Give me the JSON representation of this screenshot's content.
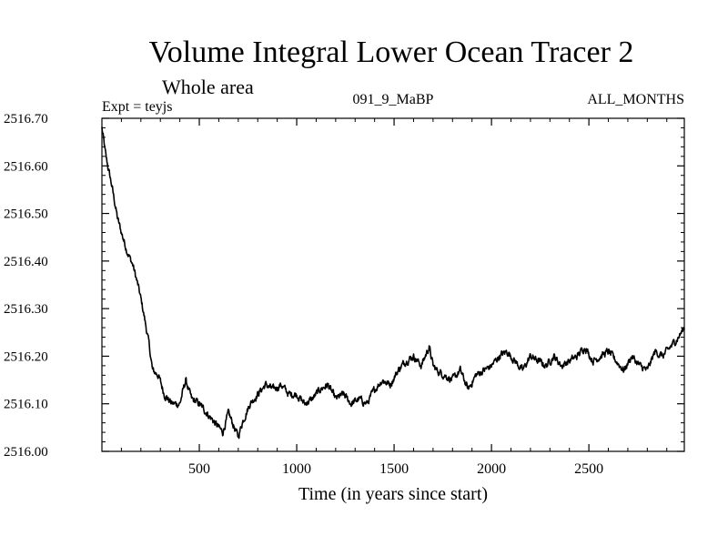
{
  "chart_data": {
    "type": "line",
    "title": "Volume Integral Lower Ocean Tracer 2",
    "subtitle": "Whole area",
    "expt_label": "Expt = teyjs",
    "run_label": "091_9_MaBP",
    "months_label": "ALL_MONTHS",
    "xlabel": "Time (in years since start)",
    "ylabel": "",
    "xlim": [
      0,
      2990
    ],
    "ylim": [
      2516.0,
      2516.7
    ],
    "x_ticks": [
      500,
      1000,
      1500,
      2000,
      2500
    ],
    "x_tick_labels": [
      "500",
      "1000",
      "1500",
      "2000",
      "2500"
    ],
    "y_ticks": [
      2516.0,
      2516.1,
      2516.2,
      2516.3,
      2516.4,
      2516.5,
      2516.6,
      2516.7
    ],
    "y_tick_labels": [
      "2516.00",
      "2516.10",
      "2516.20",
      "2516.30",
      "2516.40",
      "2516.50",
      "2516.60",
      "2516.70"
    ],
    "grid": false,
    "series": [
      {
        "name": "Volume integral",
        "x": [
          0,
          20,
          50,
          80,
          100,
          130,
          160,
          190,
          210,
          240,
          260,
          290,
          320,
          360,
          400,
          430,
          460,
          500,
          540,
          580,
          620,
          650,
          680,
          700,
          720,
          760,
          800,
          840,
          880,
          920,
          960,
          1000,
          1040,
          1080,
          1120,
          1160,
          1200,
          1240,
          1280,
          1320,
          1360,
          1400,
          1440,
          1480,
          1520,
          1560,
          1600,
          1640,
          1680,
          1700,
          1720,
          1760,
          1800,
          1840,
          1880,
          1920,
          1960,
          2000,
          2040,
          2080,
          2120,
          2160,
          2200,
          2240,
          2280,
          2320,
          2360,
          2400,
          2440,
          2480,
          2520,
          2560,
          2600,
          2640,
          2680,
          2720,
          2760,
          2800,
          2840,
          2880,
          2920,
          2960,
          2990
        ],
        "values": [
          2516.68,
          2516.62,
          2516.56,
          2516.49,
          2516.46,
          2516.42,
          2516.39,
          2516.34,
          2516.3,
          2516.23,
          2516.17,
          2516.16,
          2516.12,
          2516.1,
          2516.1,
          2516.15,
          2516.11,
          2516.1,
          2516.08,
          2516.06,
          2516.04,
          2516.08,
          2516.05,
          2516.03,
          2516.06,
          2516.1,
          2516.12,
          2516.14,
          2516.13,
          2516.14,
          2516.12,
          2516.12,
          2516.1,
          2516.11,
          2516.13,
          2516.14,
          2516.11,
          2516.12,
          2516.1,
          2516.11,
          2516.1,
          2516.13,
          2516.15,
          2516.14,
          2516.17,
          2516.19,
          2516.2,
          2516.18,
          2516.22,
          2516.18,
          2516.17,
          2516.16,
          2516.15,
          2516.17,
          2516.13,
          2516.16,
          2516.17,
          2516.18,
          2516.2,
          2516.21,
          2516.19,
          2516.17,
          2516.2,
          2516.19,
          2516.18,
          2516.2,
          2516.18,
          2516.19,
          2516.2,
          2516.22,
          2516.19,
          2516.2,
          2516.21,
          2516.19,
          2516.17,
          2516.2,
          2516.18,
          2516.17,
          2516.21,
          2516.2,
          2516.22,
          2516.24,
          2516.26
        ]
      }
    ]
  }
}
